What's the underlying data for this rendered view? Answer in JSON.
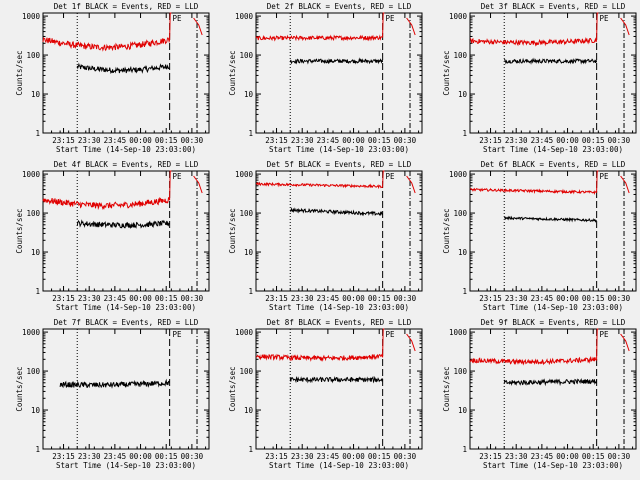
{
  "figure": {
    "xlabel": "Start Time (14-Sep-10 23:03:00)",
    "ylabel": "Counts/sec",
    "xticklabels": [
      "23:15",
      "23:30",
      "23:45",
      "00:00",
      "00:15",
      "00:30"
    ],
    "yticklabels": [
      "1",
      "10",
      "100",
      "1000"
    ]
  },
  "chart_data": [
    {
      "type": "line",
      "title": "Det 1f BLACK = Events, RED = LLD",
      "yscale": "log",
      "ylim": [
        1,
        1200
      ],
      "xticks": [
        12,
        27,
        42,
        57,
        72,
        87
      ],
      "vlines": {
        "dotted": 20,
        "dashdot": 74,
        "dashed": 90
      },
      "marker_x": 76,
      "marker_text": "PE",
      "grid": false,
      "series": [
        {
          "name": "Events",
          "color": "#000000",
          "x": [
            20,
            74
          ],
          "y": [
            50,
            52
          ],
          "noise": 0.07,
          "sag": 0.1
        },
        {
          "name": "LLD",
          "color": "#e00000",
          "x": [
            0,
            74
          ],
          "y": [
            250,
            250
          ],
          "noise": 0.08,
          "sag": 0.2,
          "tail": true
        }
      ]
    },
    {
      "type": "line",
      "title": "Det 2f BLACK = Events, RED = LLD",
      "yscale": "log",
      "ylim": [
        1,
        1200
      ],
      "xticks": [
        12,
        27,
        42,
        57,
        72,
        87
      ],
      "vlines": {
        "dotted": 20,
        "dashdot": 74,
        "dashed": 90
      },
      "marker_x": 76,
      "marker_text": "PE",
      "grid": false,
      "series": [
        {
          "name": "Events",
          "color": "#000000",
          "x": [
            20,
            74
          ],
          "y": [
            70,
            70
          ],
          "noise": 0.05,
          "sag": 0
        },
        {
          "name": "LLD",
          "color": "#e00000",
          "x": [
            0,
            74
          ],
          "y": [
            270,
            280
          ],
          "noise": 0.05,
          "sag": 0,
          "tail": true
        }
      ]
    },
    {
      "type": "line",
      "title": "Det 3f BLACK = Events, RED = LLD",
      "yscale": "log",
      "ylim": [
        1,
        1200
      ],
      "xticks": [
        12,
        27,
        42,
        57,
        72,
        87
      ],
      "vlines": {
        "dotted": 20,
        "dashdot": 74,
        "dashed": 90
      },
      "marker_x": 76,
      "marker_text": "PE",
      "grid": false,
      "series": [
        {
          "name": "Events",
          "color": "#000000",
          "x": [
            20,
            74
          ],
          "y": [
            70,
            70
          ],
          "noise": 0.05,
          "sag": 0
        },
        {
          "name": "LLD",
          "color": "#e00000",
          "x": [
            0,
            74
          ],
          "y": [
            230,
            240
          ],
          "noise": 0.06,
          "sag": 0.05,
          "tail": true
        }
      ]
    },
    {
      "type": "line",
      "title": "Det 4f BLACK = Events, RED = LLD",
      "yscale": "log",
      "ylim": [
        1,
        1200
      ],
      "xticks": [
        12,
        27,
        42,
        57,
        72,
        87
      ],
      "vlines": {
        "dotted": 20,
        "dashdot": 74,
        "dashed": 90
      },
      "marker_x": 76,
      "marker_text": "PE",
      "grid": false,
      "series": [
        {
          "name": "Events",
          "color": "#000000",
          "x": [
            20,
            74
          ],
          "y": [
            55,
            55
          ],
          "noise": 0.07,
          "sag": 0.05
        },
        {
          "name": "LLD",
          "color": "#e00000",
          "x": [
            0,
            74
          ],
          "y": [
            220,
            220
          ],
          "noise": 0.08,
          "sag": 0.15,
          "tail": true
        }
      ]
    },
    {
      "type": "line",
      "title": "Det 5f BLACK = Events, RED = LLD",
      "yscale": "log",
      "ylim": [
        1,
        1200
      ],
      "xticks": [
        12,
        27,
        42,
        57,
        72,
        87
      ],
      "vlines": {
        "dotted": 20,
        "dashdot": 74,
        "dashed": 90
      },
      "marker_x": 76,
      "marker_text": "PE",
      "grid": false,
      "series": [
        {
          "name": "Events",
          "color": "#000000",
          "x": [
            20,
            74
          ],
          "y": [
            120,
            95
          ],
          "noise": 0.04,
          "sag": 0
        },
        {
          "name": "LLD",
          "color": "#e00000",
          "x": [
            0,
            74
          ],
          "y": [
            560,
            480
          ],
          "noise": 0.03,
          "sag": 0,
          "tail": true
        }
      ]
    },
    {
      "type": "line",
      "title": "Det 6f BLACK = Events, RED = LLD",
      "yscale": "log",
      "ylim": [
        1,
        1200
      ],
      "xticks": [
        12,
        27,
        42,
        57,
        72,
        87
      ],
      "vlines": {
        "dotted": 20,
        "dashdot": 74,
        "dashed": 90
      },
      "marker_x": 76,
      "marker_text": "PE",
      "grid": false,
      "series": [
        {
          "name": "Events",
          "color": "#000000",
          "x": [
            20,
            74
          ],
          "y": [
            75,
            65
          ],
          "noise": 0.03,
          "sag": 0
        },
        {
          "name": "LLD",
          "color": "#e00000",
          "x": [
            0,
            74
          ],
          "y": [
            400,
            340
          ],
          "noise": 0.03,
          "sag": 0,
          "tail": true
        }
      ]
    },
    {
      "type": "line",
      "title": "Det 7f BLACK = Events, RED = LLD",
      "yscale": "log",
      "ylim": [
        1,
        1200
      ],
      "xticks": [
        12,
        27,
        42,
        57,
        72,
        87
      ],
      "vlines": {
        "dotted": 20,
        "dashdot": 74,
        "dashed": 90
      },
      "marker_x": 76,
      "marker_text": "PE",
      "grid": false,
      "series": [
        {
          "name": "Events",
          "color": "#000000",
          "x": [
            10,
            74
          ],
          "y": [
            45,
            50
          ],
          "noise": 0.07,
          "sag": 0.03
        }
      ]
    },
    {
      "type": "line",
      "title": "Det 8f BLACK = Events, RED = LLD",
      "yscale": "log",
      "ylim": [
        1,
        1200
      ],
      "xticks": [
        12,
        27,
        42,
        57,
        72,
        87
      ],
      "vlines": {
        "dotted": 20,
        "dashdot": 74,
        "dashed": 90
      },
      "marker_x": 76,
      "marker_text": "PE",
      "grid": false,
      "series": [
        {
          "name": "Events",
          "color": "#000000",
          "x": [
            20,
            74
          ],
          "y": [
            60,
            60
          ],
          "noise": 0.06,
          "sag": 0
        },
        {
          "name": "LLD",
          "color": "#e00000",
          "x": [
            0,
            74
          ],
          "y": [
            240,
            240
          ],
          "noise": 0.06,
          "sag": 0.05,
          "tail": true
        }
      ]
    },
    {
      "type": "line",
      "title": "Det 9f BLACK = Events, RED = LLD",
      "yscale": "log",
      "ylim": [
        1,
        1200
      ],
      "xticks": [
        12,
        27,
        42,
        57,
        72,
        87
      ],
      "vlines": {
        "dotted": 20,
        "dashdot": 74,
        "dashed": 90
      },
      "marker_x": 76,
      "marker_text": "PE",
      "grid": false,
      "series": [
        {
          "name": "Events",
          "color": "#000000",
          "x": [
            20,
            74
          ],
          "y": [
            50,
            55
          ],
          "noise": 0.06,
          "sag": 0
        },
        {
          "name": "LLD",
          "color": "#e00000",
          "x": [
            0,
            74
          ],
          "y": [
            190,
            200
          ],
          "noise": 0.06,
          "sag": 0.05,
          "tail": true
        }
      ]
    }
  ]
}
